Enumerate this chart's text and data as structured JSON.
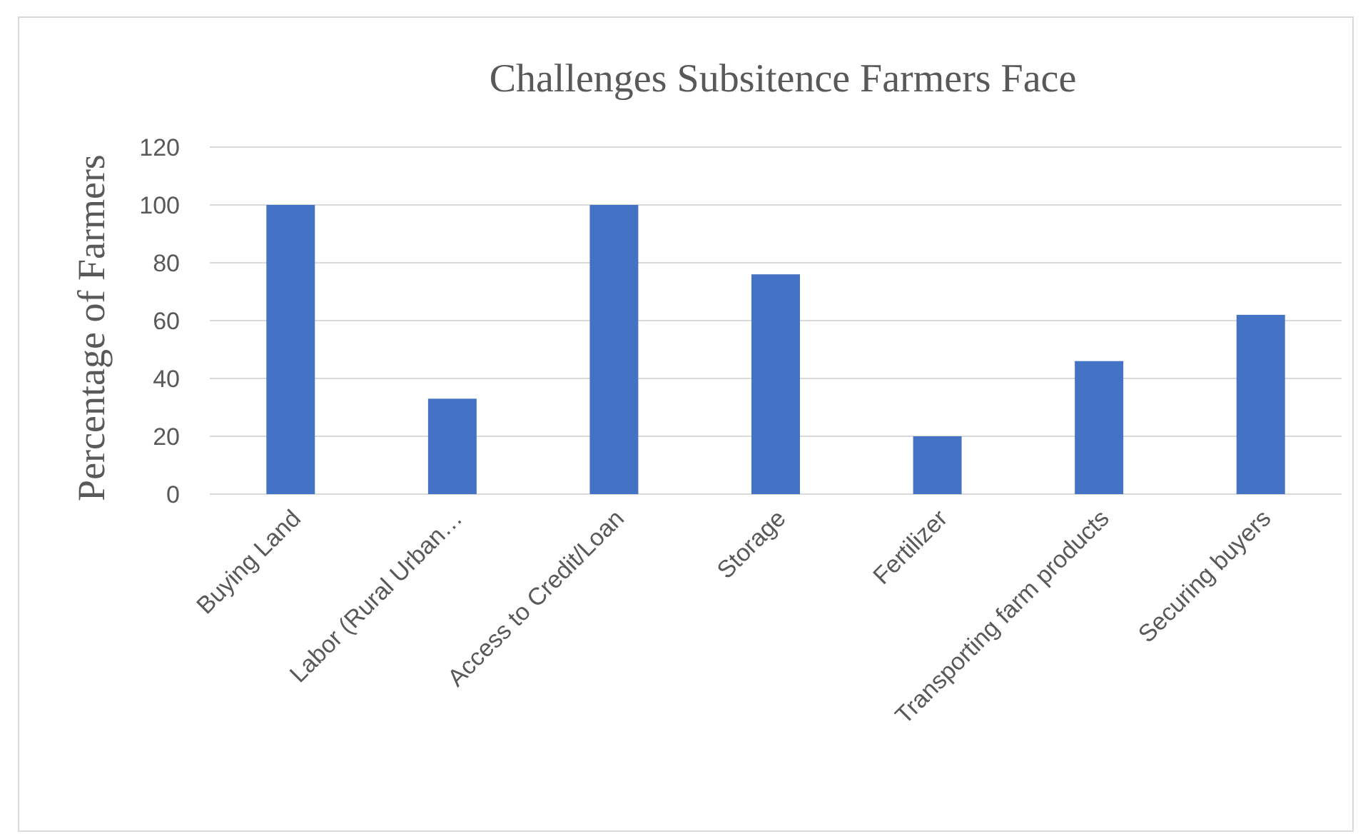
{
  "chart_data": {
    "type": "bar",
    "title": "Challenges Subsitence Farmers Face",
    "ylabel": "Percentage of Farmers",
    "categories": [
      "Buying Land",
      "Labor (Rural Urban…",
      "Access to Credit/Loan",
      "Storage",
      "Fertilizer",
      "Transporting farm products",
      "Securing buyers"
    ],
    "values": [
      100,
      33,
      100,
      76,
      20,
      46,
      62
    ],
    "color": "#4472c4",
    "ylim": [
      0,
      120
    ],
    "yticks": [
      0,
      20,
      40,
      60,
      80,
      100,
      120
    ],
    "grid": "y"
  }
}
